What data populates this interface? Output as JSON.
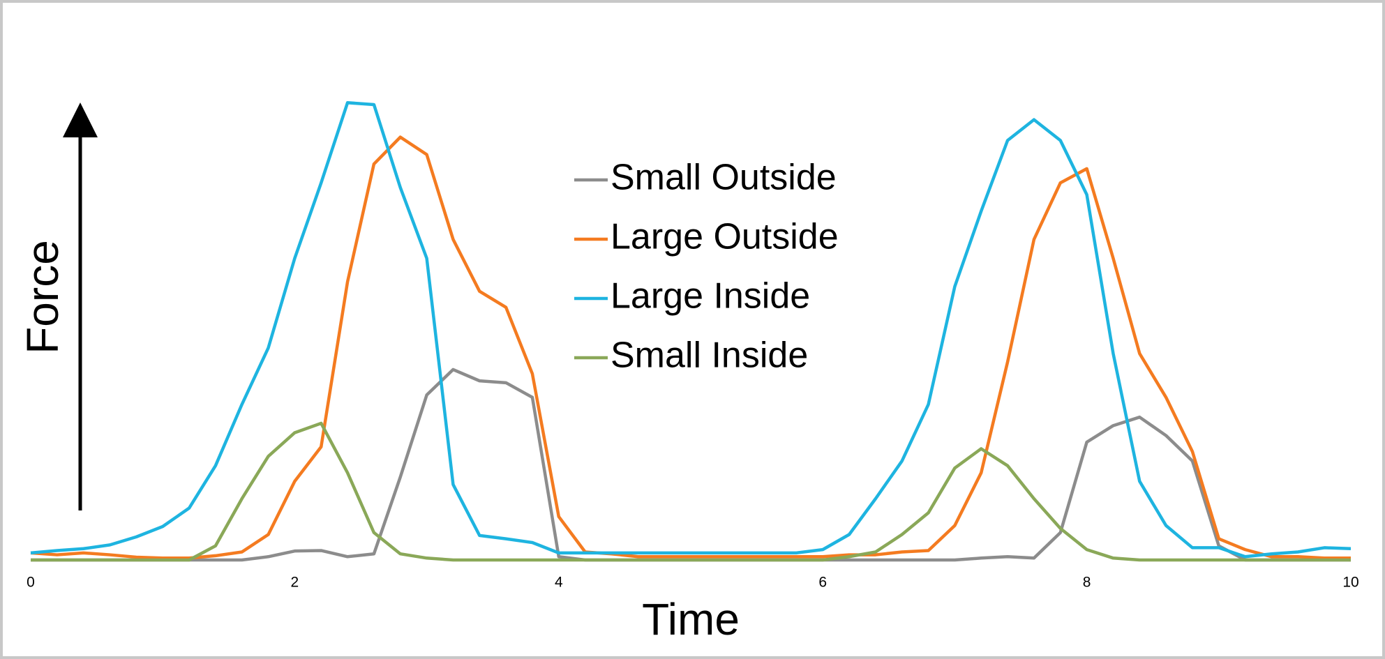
{
  "chart_data": {
    "type": "line",
    "xlabel": "Time",
    "ylabel": "Force",
    "x": [
      0,
      0.2,
      0.4,
      0.6,
      0.8,
      1,
      1.2,
      1.4,
      1.6,
      1.8,
      2,
      2.2,
      2.4,
      2.6,
      2.8,
      3,
      3.2,
      3.4,
      3.6,
      3.8,
      4,
      4.2,
      4.4,
      4.6,
      4.8,
      5,
      5.2,
      5.4,
      5.6,
      5.8,
      6,
      6.2,
      6.4,
      6.6,
      6.8,
      7,
      7.2,
      7.4,
      7.6,
      7.8,
      8,
      8.2,
      8.4,
      8.6,
      8.8,
      9,
      9.2,
      9.4,
      9.6,
      9.8,
      10
    ],
    "xlim": [
      0,
      10
    ],
    "xticks": [
      0,
      2,
      4,
      6,
      8,
      10
    ],
    "ylim": [
      0,
      100
    ],
    "legend": "center",
    "series": [
      {
        "name": "Small Outside",
        "color": "#8c8c8c",
        "values": [
          0,
          0,
          0,
          0,
          0,
          0,
          0,
          0,
          0,
          0.7,
          1.9,
          2,
          0.7,
          1.3,
          17.6,
          35,
          40.4,
          38,
          37.6,
          34.5,
          0.7,
          0,
          0,
          0,
          0,
          0,
          0,
          0,
          0,
          0,
          0,
          0,
          0,
          0,
          0,
          0,
          0.4,
          0.7,
          0.4,
          5.8,
          25,
          28.5,
          30.3,
          26.4,
          21,
          3,
          0,
          0,
          0,
          0,
          0
        ]
      },
      {
        "name": "Large Outside",
        "color": "#f47b20",
        "values": [
          1.5,
          1.1,
          1.5,
          1.1,
          0.6,
          0.4,
          0.4,
          0.9,
          1.7,
          5.4,
          16.7,
          24,
          59,
          84,
          89.7,
          86,
          68,
          57,
          53.6,
          39.5,
          9.2,
          1.7,
          1.3,
          0.7,
          0.7,
          0.7,
          0.7,
          0.7,
          0.7,
          0.7,
          0.7,
          1.1,
          1.1,
          1.7,
          2,
          7.3,
          18.5,
          42,
          68,
          80,
          83,
          64,
          43.8,
          34.5,
          23,
          4.5,
          2.2,
          0.7,
          0.7,
          0.4,
          0.4
        ]
      },
      {
        "name": "Large Inside",
        "color": "#1eb4e0",
        "values": [
          1.5,
          2,
          2.4,
          3.2,
          4.9,
          7.1,
          11,
          20,
          33,
          45,
          64,
          80,
          97,
          96.6,
          79,
          64,
          16,
          5.2,
          4.5,
          3.7,
          1.5,
          1.5,
          1.5,
          1.5,
          1.5,
          1.5,
          1.5,
          1.5,
          1.5,
          1.5,
          2.2,
          5.4,
          13,
          21,
          33,
          58,
          74,
          89,
          93.4,
          89,
          77.5,
          43.8,
          16.7,
          7.3,
          2.6,
          2.6,
          0.7,
          1.3,
          1.7,
          2.6,
          2.4
        ]
      },
      {
        "name": "Small Inside",
        "color": "#8aa858",
        "values": [
          0,
          0,
          0,
          0,
          0,
          0,
          0,
          3,
          13,
          22,
          27,
          29,
          18.5,
          5.8,
          1.3,
          0.4,
          0,
          0,
          0,
          0,
          0,
          0,
          0,
          0,
          0,
          0,
          0,
          0,
          0,
          0,
          0,
          0.7,
          1.7,
          5.4,
          10,
          19.5,
          23.6,
          20,
          13,
          6.7,
          2.2,
          0.4,
          0,
          0,
          0,
          0,
          0,
          0,
          0,
          0,
          0
        ]
      }
    ]
  }
}
